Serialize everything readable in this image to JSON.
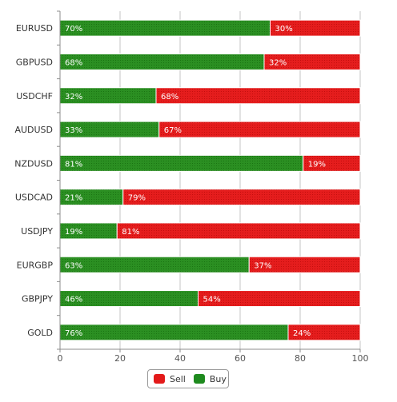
{
  "chart_data": {
    "type": "bar",
    "orientation": "horizontal",
    "stacked": true,
    "categories": [
      "EURUSD",
      "GBPUSD",
      "USDCHF",
      "AUDUSD",
      "NZDUSD",
      "USDCAD",
      "USDJPY",
      "EURGBP",
      "GBPJPY",
      "GOLD"
    ],
    "series": [
      {
        "name": "Buy",
        "color": "#1e8a1e",
        "values": [
          70,
          68,
          32,
          33,
          81,
          21,
          19,
          63,
          46,
          76
        ]
      },
      {
        "name": "Sell",
        "color": "#e31a1a",
        "values": [
          30,
          32,
          68,
          67,
          19,
          79,
          81,
          37,
          54,
          24
        ]
      }
    ],
    "data_labels": {
      "Buy": [
        "70%",
        "68%",
        "32%",
        "33%",
        "81%",
        "21%",
        "19%",
        "63%",
        "46%",
        "76%"
      ],
      "Sell": [
        "30%",
        "32%",
        "68%",
        "67%",
        "19%",
        "79%",
        "81%",
        "37%",
        "54%",
        "24%"
      ]
    },
    "xlim": [
      0,
      100
    ],
    "xticks": [
      0,
      20,
      40,
      60,
      80,
      100
    ],
    "xtick_labels": [
      "0",
      "20",
      "40",
      "60",
      "80",
      "100"
    ],
    "title": "",
    "xlabel": "",
    "ylabel": "",
    "grid": true,
    "legend": {
      "placement": "bottom-center",
      "entries": [
        {
          "name": "Sell",
          "color": "#e31a1a"
        },
        {
          "name": "Buy",
          "color": "#1e8a1e"
        }
      ]
    }
  }
}
